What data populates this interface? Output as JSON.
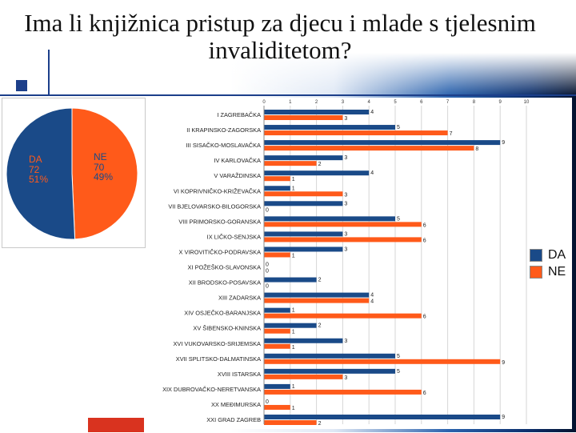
{
  "title": "Ima li knjižnica pristup za djecu i mlade s tjelesnim invaliditetom?",
  "colors": {
    "da": "#1a4a88",
    "ne": "#ff5a1a",
    "grid": "#d6d6d6",
    "axis_text": "#333333"
  },
  "pie": {
    "slices": [
      {
        "key": "DA",
        "value": 72,
        "pct": "51%",
        "label": "DA\n72\n51%"
      },
      {
        "key": "NE",
        "value": 70,
        "pct": "49%",
        "label": "NE\n70\n49%"
      }
    ]
  },
  "chart_data": [
    {
      "type": "pie",
      "categories": [
        "DA",
        "NE"
      ],
      "values": [
        72,
        70
      ],
      "percent_labels": [
        "51%",
        "49%"
      ]
    },
    {
      "type": "bar",
      "orientation": "horizontal",
      "categories": [
        "I ZAGREBAČKA",
        "II KRAPINSKO-ZAGORSKA",
        "III SISAČKO-MOSLAVAČKA",
        "IV KARLOVAČKA",
        "V VARAŽDINSKA",
        "VI KOPRIVNIČKO-KRIŽEVAČKA",
        "VII BJELOVARSKO-BILOGORSKA",
        "VIII PRIMORSKO-GORANSKA",
        "IX LIČKO-SENJSKA",
        "X VIROVITIČKO-PODRAVSKA",
        "XI POŽEŠKO-SLAVONSKA",
        "XII BRODSKO-POSAVSKA",
        "XIII ZADARSKA",
        "XIV OSJEČKO-BARANJSKA",
        "XV ŠIBENSKO-KNINSKA",
        "XVI VUKOVARSKO-SRIJEMSKA",
        "XVII SPLITSKO-DALMATINSKA",
        "XVIII ISTARSKA",
        "XIX DUBROVAČKO-NERETVANSKA",
        "XX MEĐIMURSKA",
        "XXI GRAD ZAGREB"
      ],
      "series": [
        {
          "name": "DA",
          "values": [
            4,
            5,
            9,
            3,
            4,
            1,
            3,
            5,
            3,
            3,
            0,
            2,
            4,
            1,
            2,
            3,
            5,
            5,
            1,
            0,
            9
          ]
        },
        {
          "name": "NE",
          "values": [
            3,
            7,
            8,
            2,
            1,
            3,
            0,
            6,
            6,
            1,
            0,
            0,
            4,
            6,
            1,
            1,
            9,
            3,
            6,
            1,
            2
          ]
        }
      ],
      "xlim": [
        0,
        10
      ],
      "x_ticks": [
        "0",
        "1",
        "2",
        "3",
        "4",
        "5",
        "6",
        "7",
        "8",
        "9",
        "10"
      ],
      "grid": true,
      "legend": "right"
    }
  ],
  "legend": {
    "da": "DA",
    "ne": "NE"
  }
}
